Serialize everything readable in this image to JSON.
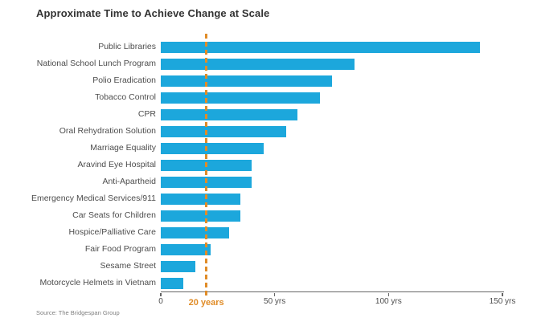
{
  "title": "Approximate Time to Achieve Change at Scale",
  "source": "Source: The Bridgespan Group",
  "colors": {
    "bar_blue": "#1CA7DC",
    "accent_orange": "#E08C28",
    "title_text": "#333333",
    "label_text": "#4d4d4d",
    "axis": "#666666",
    "source_text": "#808080",
    "background": "#ffffff"
  },
  "reference_line": {
    "value": 20,
    "label": "20 years"
  },
  "chart_data": {
    "type": "bar",
    "orientation": "horizontal",
    "title": "Approximate Time to Achieve Change at Scale",
    "xlabel": "",
    "ylabel": "",
    "value_unit": "years",
    "xlim": [
      0,
      150
    ],
    "grid": false,
    "legend": false,
    "categories": [
      "Public Libraries",
      "National School Lunch Program",
      "Polio Eradication",
      "Tobacco Control",
      "CPR",
      "Oral Rehydration Solution",
      "Marriage Equality",
      "Aravind Eye Hospital",
      "Anti-Apartheid",
      "Emergency Medical Services/911",
      "Car Seats for Children",
      "Hospice/Palliative Care",
      "Fair Food Program",
      "Sesame Street",
      "Motorcycle Helmets in Vietnam"
    ],
    "values": [
      140,
      85,
      75,
      70,
      60,
      55,
      45,
      40,
      40,
      35,
      35,
      30,
      22,
      15,
      10
    ],
    "x_ticks": [
      {
        "value": 0,
        "label": "0"
      },
      {
        "value": 50,
        "label": "50 yrs"
      },
      {
        "value": 100,
        "label": "100 yrs"
      },
      {
        "value": 150,
        "label": "150 yrs"
      }
    ],
    "annotations": [
      {
        "type": "vline",
        "value": 20,
        "label": "20 years",
        "style": "dashed",
        "color": "#E08C28"
      }
    ]
  }
}
